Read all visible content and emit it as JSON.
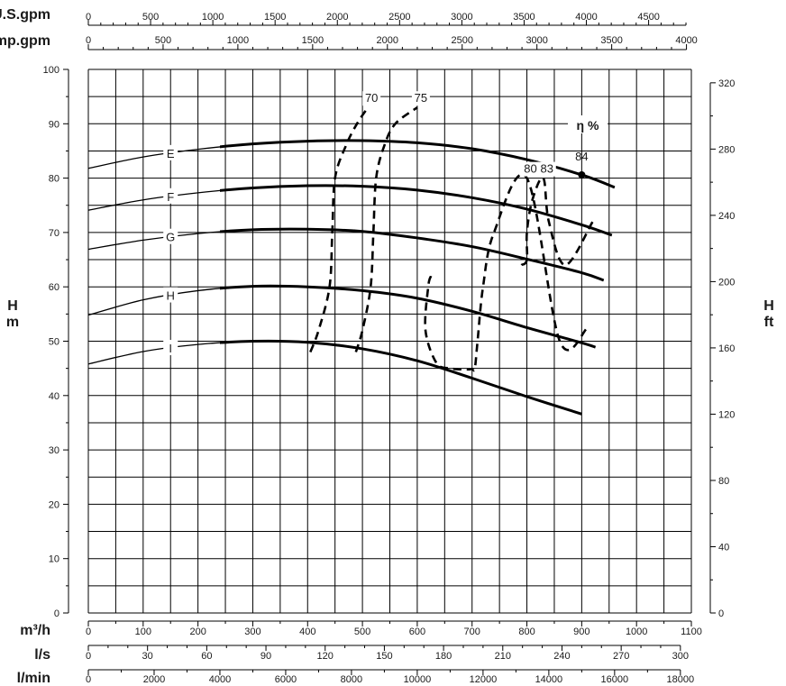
{
  "chart_data": {
    "type": "line",
    "x_axes": {
      "m3h": {
        "title": "m³/h",
        "ticks": [
          0,
          100,
          200,
          300,
          400,
          500,
          600,
          700,
          800,
          900,
          1000,
          1100
        ],
        "range": [
          0,
          1100
        ]
      },
      "ls": {
        "title": "l/s",
        "ticks": [
          0,
          30,
          60,
          90,
          120,
          150,
          180,
          210,
          240,
          270,
          300
        ]
      },
      "lmin": {
        "title": "l/min",
        "ticks": [
          0,
          2000,
          4000,
          6000,
          8000,
          10000,
          12000,
          14000,
          16000,
          18000
        ]
      },
      "usgpm": {
        "title": "U.S.gpm",
        "ticks": [
          0,
          500,
          1000,
          1500,
          2000,
          2500,
          3000,
          3500,
          4000,
          4500
        ]
      },
      "impgpm": {
        "title": "Imp.gpm",
        "ticks": [
          0,
          500,
          1000,
          1500,
          2000,
          2500,
          3000,
          3500,
          4000
        ]
      }
    },
    "y_axes": {
      "left": {
        "title_top": "H",
        "title_bottom": "m",
        "ticks": [
          0,
          10,
          20,
          30,
          40,
          50,
          60,
          70,
          80,
          90,
          100
        ],
        "range": [
          0,
          100
        ]
      },
      "right": {
        "title_top": "H",
        "title_bottom": "ft",
        "ticks": [
          0,
          40,
          80,
          120,
          160,
          200,
          240,
          280,
          320
        ]
      }
    },
    "grid": true,
    "series": [
      {
        "name": "E",
        "x": [
          0,
          100,
          200,
          300,
          400,
          500,
          600,
          700,
          800,
          900,
          960
        ],
        "y": [
          81.8,
          83.9,
          85.3,
          86.3,
          86.8,
          86.9,
          86.5,
          85.4,
          83.4,
          80.6,
          78.3
        ]
      },
      {
        "name": "F",
        "x": [
          0,
          100,
          200,
          300,
          400,
          500,
          600,
          700,
          800,
          900,
          955
        ],
        "y": [
          74.1,
          76.0,
          77.3,
          78.2,
          78.6,
          78.5,
          77.8,
          76.4,
          74.3,
          71.4,
          69.5
        ]
      },
      {
        "name": "G",
        "x": [
          0,
          100,
          200,
          300,
          400,
          500,
          600,
          700,
          800,
          900,
          940
        ],
        "y": [
          66.9,
          68.6,
          69.8,
          70.5,
          70.6,
          70.2,
          69.0,
          67.4,
          65.1,
          62.6,
          61.2
        ]
      },
      {
        "name": "H",
        "x": [
          0,
          100,
          200,
          300,
          400,
          500,
          600,
          700,
          800,
          900,
          925
        ],
        "y": [
          54.8,
          57.6,
          59.3,
          60.1,
          60.0,
          59.3,
          57.9,
          55.5,
          52.5,
          49.7,
          48.9
        ]
      },
      {
        "name": "I",
        "x": [
          0,
          100,
          200,
          300,
          400,
          500,
          600,
          700,
          800,
          900
        ],
        "y": [
          45.8,
          48.1,
          49.4,
          50.0,
          49.8,
          48.6,
          46.4,
          43.2,
          39.8,
          36.6
        ]
      }
    ],
    "efficiency_title": "η %",
    "efficiency_curves": [
      {
        "label": "70",
        "x": [
          405,
          420,
          440,
          445,
          450,
          470,
          490,
          510
        ],
        "y": [
          48,
          52,
          60,
          70,
          80,
          86,
          90,
          93
        ]
      },
      {
        "label": "75",
        "x": [
          488,
          500,
          515,
          520,
          525,
          540,
          560,
          600
        ],
        "y": [
          48,
          52,
          60,
          70,
          80,
          86,
          90,
          93
        ]
      },
      {
        "label": "80",
        "x": [
          625,
          620,
          615,
          635,
          660,
          690,
          700,
          705,
          710,
          720,
          740,
          800,
          860,
          910
        ],
        "y": [
          62,
          60,
          52,
          46,
          45,
          44.8,
          44.9,
          45,
          50,
          60,
          70,
          80,
          50,
          52.4
        ]
      },
      {
        "label": "83",
        "x": [
          790,
          800,
          800,
          810,
          830,
          840,
          870,
          920
        ],
        "y": [
          64,
          65,
          70,
          76,
          80,
          72,
          64,
          72
        ]
      },
      {
        "label": "84",
        "x": [
          900
        ],
        "y": [
          80.6
        ]
      }
    ]
  }
}
